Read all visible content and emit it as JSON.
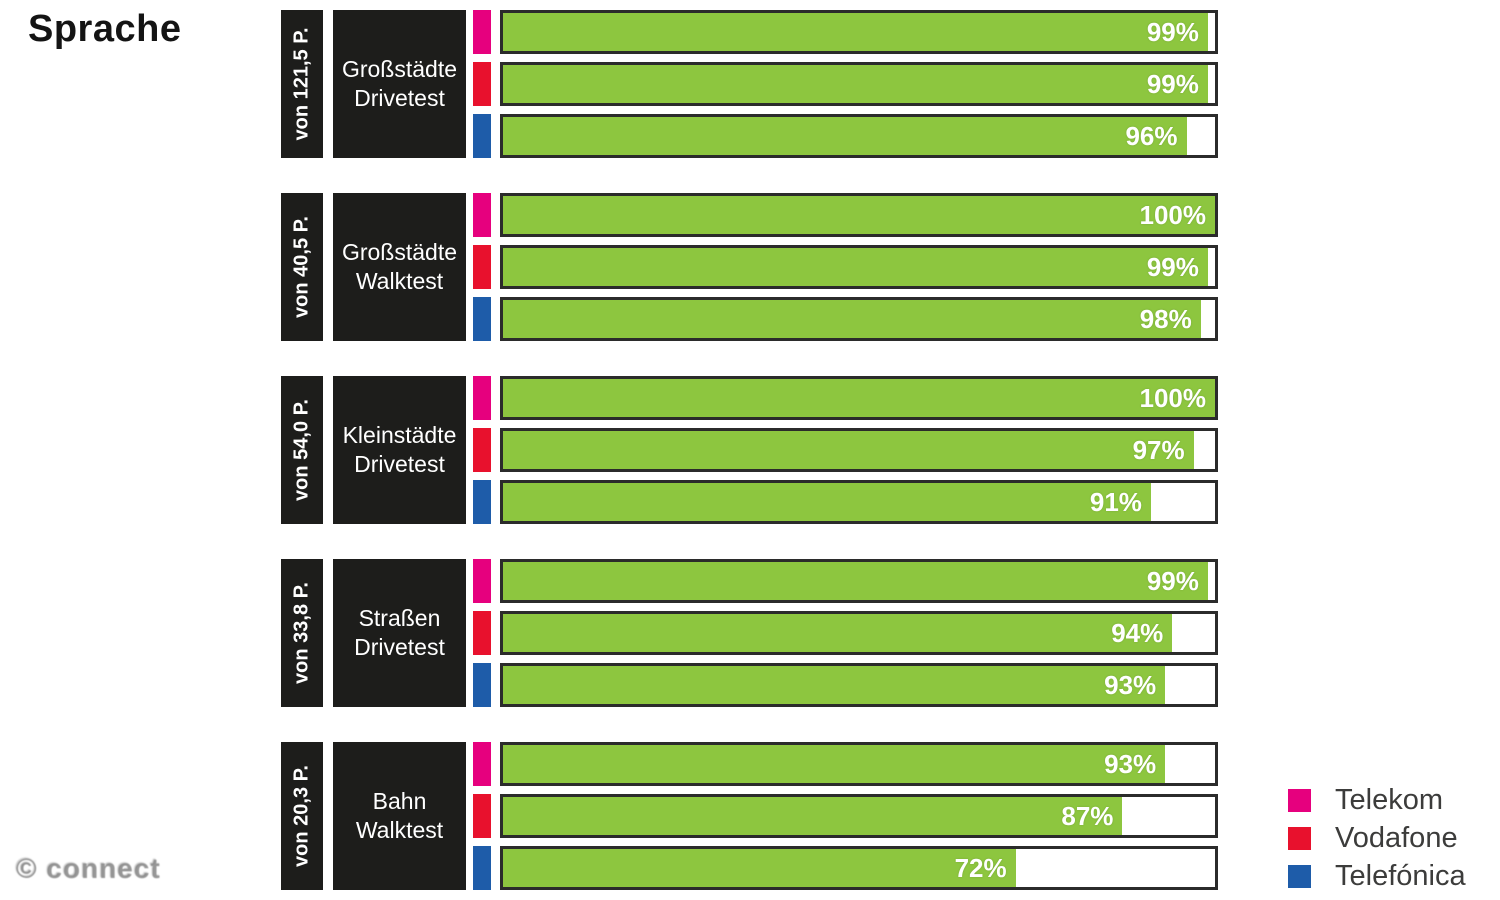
{
  "title": "Sprache",
  "watermark": "© connect",
  "colors": {
    "bar_green": "#8dc63f",
    "bar_border": "#2b2b2b",
    "box_black": "#1d1d1b",
    "telekom_magenta": "#e6007e",
    "vodafone_red": "#e8112d",
    "telefonica_blue": "#1e5ca9"
  },
  "legend": [
    {
      "label": "Telekom",
      "color": "#e6007e"
    },
    {
      "label": "Vodafone",
      "color": "#e8112d"
    },
    {
      "label": "Telefónica",
      "color": "#1e5ca9"
    }
  ],
  "chart_data": {
    "type": "bar",
    "orientation": "horizontal",
    "title": "Sprache",
    "unit": "%",
    "xlim": [
      0,
      100
    ],
    "grid": false,
    "legend_position": "bottom-right",
    "series_names": [
      "Telekom",
      "Vodafone",
      "Telefónica"
    ],
    "series_colors": [
      "#e6007e",
      "#e8112d",
      "#1e5ca9"
    ],
    "groups": [
      {
        "points": "von 121,5 P.",
        "label_lines": [
          "Großstädte",
          "Drivetest"
        ],
        "values": [
          99,
          99,
          96
        ]
      },
      {
        "points": "von 40,5 P.",
        "label_lines": [
          "Großstädte",
          "Walktest"
        ],
        "values": [
          100,
          99,
          98
        ]
      },
      {
        "points": "von 54,0 P.",
        "label_lines": [
          "Kleinstädte",
          "Drivetest"
        ],
        "values": [
          100,
          97,
          91
        ]
      },
      {
        "points": "von 33,8 P.",
        "label_lines": [
          "Straßen",
          "Drivetest"
        ],
        "values": [
          99,
          94,
          93
        ]
      },
      {
        "points": "von 20,3 P.",
        "label_lines": [
          "Bahn",
          "Walktest"
        ],
        "values": [
          93,
          87,
          72
        ]
      }
    ]
  }
}
